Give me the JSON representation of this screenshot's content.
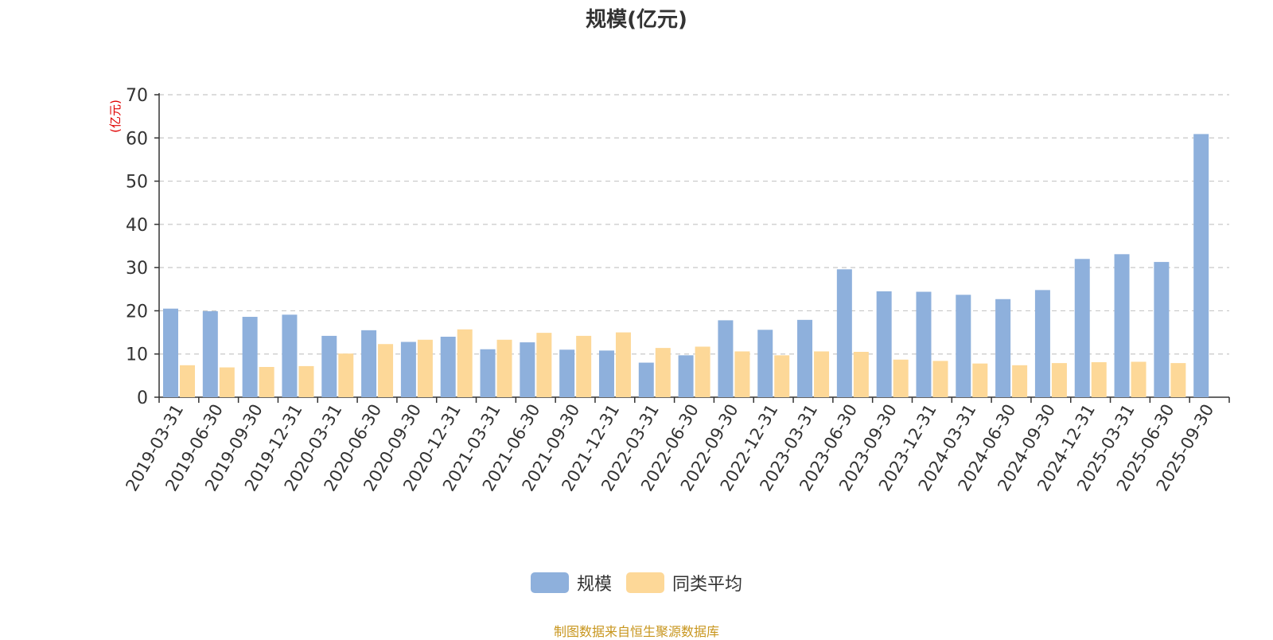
{
  "chart_data": {
    "type": "bar",
    "title": "规模(亿元)",
    "ylabel": "(亿元)",
    "xlabel": "",
    "ylim": [
      0,
      70
    ],
    "yticks": [
      0,
      10,
      20,
      30,
      40,
      50,
      60,
      70
    ],
    "grid": true,
    "legend_position": "bottom-center",
    "categories": [
      "2019-03-31",
      "2019-06-30",
      "2019-09-30",
      "2019-12-31",
      "2020-03-31",
      "2020-06-30",
      "2020-09-30",
      "2020-12-31",
      "2021-03-31",
      "2021-06-30",
      "2021-09-30",
      "2021-12-31",
      "2022-03-31",
      "2022-06-30",
      "2022-09-30",
      "2022-12-31",
      "2023-03-31",
      "2023-06-30",
      "2023-09-30",
      "2023-12-31",
      "2024-03-31",
      "2024-06-30",
      "2024-09-30",
      "2024-12-31",
      "2025-03-31",
      "2025-06-30",
      "2025-09-30"
    ],
    "series": [
      {
        "name": "规模",
        "color": "#8eb0dc",
        "values": [
          20.5,
          19.9,
          18.6,
          19.1,
          14.2,
          15.5,
          12.8,
          14.0,
          11.1,
          12.7,
          11.0,
          10.8,
          8.0,
          9.7,
          17.8,
          15.6,
          17.9,
          29.6,
          24.5,
          24.4,
          23.7,
          22.7,
          24.8,
          32.0,
          33.1,
          31.3,
          60.9
        ]
      },
      {
        "name": "同类平均",
        "color": "#fdd898",
        "values": [
          7.4,
          6.9,
          7.0,
          7.2,
          10.1,
          12.3,
          13.3,
          15.7,
          13.3,
          14.9,
          14.2,
          15.0,
          11.4,
          11.7,
          10.6,
          9.7,
          10.6,
          10.5,
          8.7,
          8.4,
          7.8,
          7.4,
          7.9,
          8.1,
          8.2,
          7.9,
          null
        ]
      }
    ]
  },
  "source_note": "制图数据来自恒生聚源数据库"
}
